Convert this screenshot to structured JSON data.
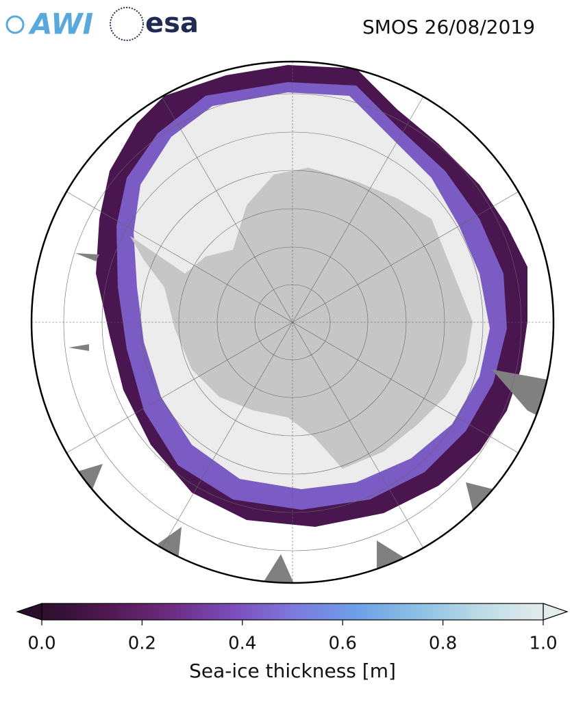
{
  "logos": [
    "AWI",
    "esa"
  ],
  "title": "SMOS 26/08/2019",
  "colorbar": {
    "label": "Sea-ice thickness [m]",
    "lim": [
      0,
      1
    ],
    "ticks": [
      {
        "value": 0,
        "label": "0.0"
      },
      {
        "value": 0.2,
        "label": "0.2"
      },
      {
        "value": 0.4,
        "label": "0.4"
      },
      {
        "value": 0.6,
        "label": "0.6"
      },
      {
        "value": 0.8,
        "label": "0.8"
      },
      {
        "value": 1,
        "label": "1.0"
      }
    ],
    "colors": [
      "#2b0e2c",
      "#4f1750",
      "#6b2a7e",
      "#7a4bb8",
      "#7e78de",
      "#6e9ee8",
      "#8cc0e4",
      "#bcdbe6",
      "#e4ecec"
    ]
  }
}
